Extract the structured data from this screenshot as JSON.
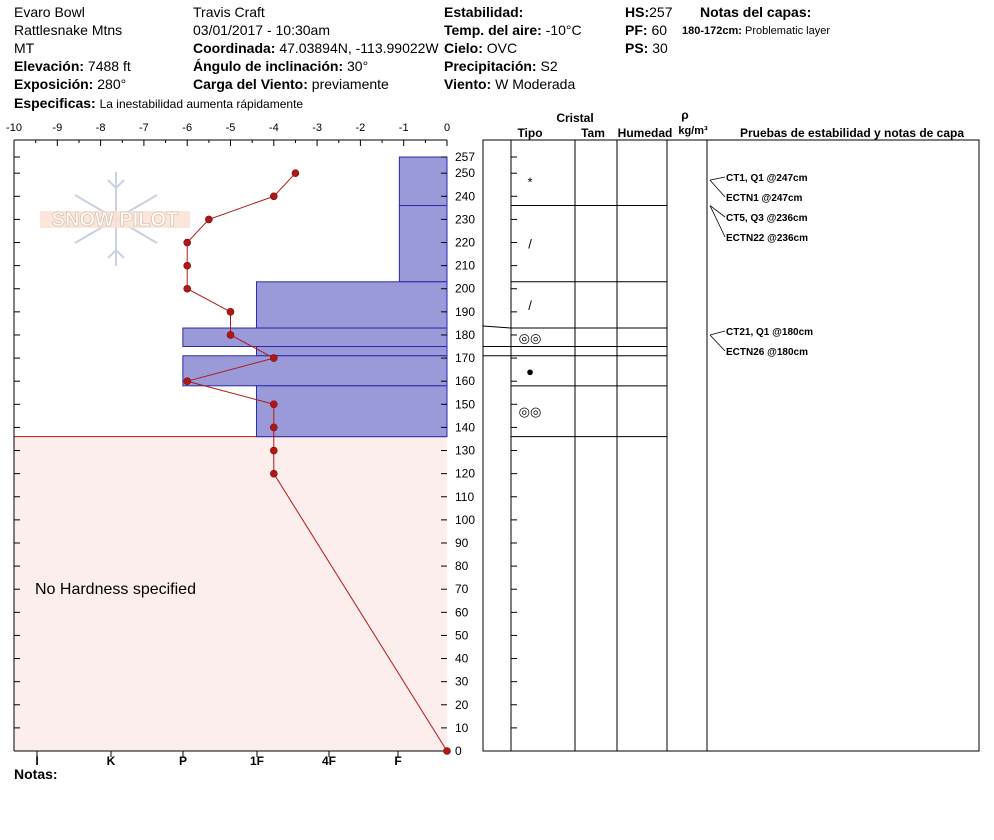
{
  "header": {
    "location": "Evaro Bowl",
    "range": "Rattlesnake Mtns",
    "state": "MT",
    "observer": "Travis  Craft",
    "datetime": "03/01/2017 - 10:30am",
    "elevation_label": "Elevación:",
    "elevation": "7488 ft",
    "aspect_label": "Exposición:",
    "aspect": "280°",
    "coord_label": "Coordinada:",
    "coord": "47.03894N, -113.99022W",
    "slope_label": "Ángulo de inclinación:",
    "slope": "30°",
    "wind_load_label": "Carga del Viento:",
    "wind_load": "previamente",
    "stability_label": "Estabilidad:",
    "air_temp_label": "Temp. del aire:",
    "air_temp": "-10°C",
    "sky_label": "Cielo:",
    "sky": "OVC",
    "precip_label": "Precipitación:",
    "precip": "S2",
    "wind_label": "Viento:",
    "wind": "W Moderada",
    "hs_label": "HS:",
    "hs": "257",
    "pf_label": "PF:",
    "pf": "60",
    "ps_label": "PS:",
    "ps": "30",
    "layer_notes_label": "Notas del capas:",
    "layer_note_range": "180-172cm:",
    "layer_note_text": "Problematic layer",
    "specifics_label": "Especificas:",
    "specifics": "La inestabilidad aumenta rápidamente",
    "notes_label": "Notas:"
  },
  "logo": {
    "text": "SNOW PILOT"
  },
  "columns": {
    "crystal": "Cristal",
    "type": "Tipo",
    "size": "Tam",
    "moisture": "Humedad",
    "rho": "ρ",
    "density_unit": "kg/m³",
    "tests": "Pruebas de estabilidad y notas de capa"
  },
  "colors": {
    "hardness_fill": "#9a9ad8",
    "hardness_edge": "#2a2aa8",
    "temp_line": "#b01818",
    "no_data_fill": "#fdeeee"
  },
  "chart_data": {
    "type": "snow_profile",
    "temperature_axis": {
      "range": [
        -10,
        0
      ],
      "ticks": [
        "-10",
        "-9",
        "-8",
        "-7",
        "-6",
        "-5",
        "-4",
        "-3",
        "-2",
        "-1",
        "0"
      ]
    },
    "hardness_axis": {
      "ticks": [
        "I",
        "K",
        "P",
        "1F",
        "4F",
        "F"
      ]
    },
    "height_axis": {
      "range": [
        0,
        257
      ],
      "ticks": [
        "257",
        "250",
        "240",
        "230",
        "220",
        "210",
        "200",
        "190",
        "180",
        "170",
        "160",
        "150",
        "140",
        "130",
        "120",
        "110",
        "100",
        "90",
        "80",
        "70",
        "60",
        "50",
        "40",
        "30",
        "20",
        "10",
        "0"
      ]
    },
    "no_hardness_below_cm": 136,
    "no_hardness_text": "No Hardness specified",
    "temperature_profile": [
      {
        "h": 250,
        "t": -3.5
      },
      {
        "h": 240,
        "t": -4
      },
      {
        "h": 230,
        "t": -5.5
      },
      {
        "h": 220,
        "t": -6
      },
      {
        "h": 210,
        "t": -6
      },
      {
        "h": 200,
        "t": -6
      },
      {
        "h": 190,
        "t": -5
      },
      {
        "h": 180,
        "t": -5
      },
      {
        "h": 170,
        "t": -4
      },
      {
        "h": 160,
        "t": -6
      },
      {
        "h": 150,
        "t": -4
      },
      {
        "h": 140,
        "t": -4
      },
      {
        "h": 130,
        "t": -4
      },
      {
        "h": 120,
        "t": -4
      },
      {
        "h": 0,
        "t": 0
      }
    ],
    "layers": [
      {
        "top": 257,
        "bottom": 236,
        "hardness_temp": -1.1,
        "symbol": "*"
      },
      {
        "top": 236,
        "bottom": 203,
        "hardness_temp": -1.1,
        "symbol": "/"
      },
      {
        "top": 203,
        "bottom": 183,
        "hardness_temp": -4.4,
        "symbol": "/"
      },
      {
        "top": 183,
        "bottom": 175,
        "hardness_temp": -6.1,
        "symbol": "◎◎"
      },
      {
        "top": 175,
        "bottom": 171,
        "hardness_temp": -4.4,
        "symbol": ""
      },
      {
        "top": 171,
        "bottom": 158,
        "hardness_temp": -6.1,
        "symbol": "●"
      },
      {
        "top": 158,
        "bottom": 136,
        "hardness_temp": -4.4,
        "symbol": "◎◎"
      }
    ],
    "stability_tests": [
      {
        "label": "CT1, Q1 @247cm",
        "h": 247
      },
      {
        "label": "ECTN1 @247cm",
        "h": 247
      },
      {
        "label": "CT5, Q3 @236cm",
        "h": 236
      },
      {
        "label": "ECTN22 @236cm",
        "h": 236
      },
      {
        "label": "CT21, Q1 @180cm",
        "h": 180
      },
      {
        "label": "ECTN26 @180cm",
        "h": 180
      }
    ]
  }
}
